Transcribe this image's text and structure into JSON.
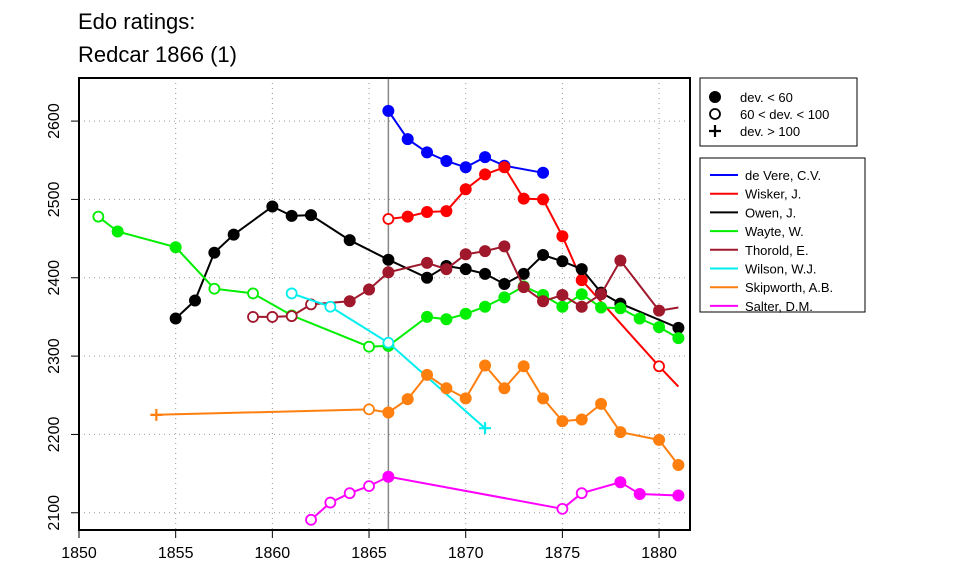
{
  "chart_data": {
    "type": "line",
    "title_lines": [
      "Edo ratings:",
      "Redcar 1866 (1)"
    ],
    "xlim": [
      1850,
      1881.6
    ],
    "ylim": [
      2078,
      2655
    ],
    "x_ticks": [
      1850,
      1855,
      1860,
      1865,
      1870,
      1875,
      1880
    ],
    "y_ticks": [
      2100,
      2200,
      2300,
      2400,
      2500,
      2600
    ],
    "grid": true,
    "reference_line_x": 1866,
    "marker_legend": [
      {
        "marker": "filled",
        "label": "dev. < 60"
      },
      {
        "marker": "open",
        "label": "60 < dev. < 100"
      },
      {
        "marker": "plus",
        "label": "dev. > 100"
      }
    ],
    "series": [
      {
        "name": "de Vere, C.V.",
        "color": "#0000ff",
        "points": [
          {
            "x": 1866,
            "y": 2613,
            "m": "f"
          },
          {
            "x": 1867,
            "y": 2577,
            "m": "f"
          },
          {
            "x": 1868,
            "y": 2560,
            "m": "f"
          },
          {
            "x": 1869,
            "y": 2549,
            "m": "f"
          },
          {
            "x": 1870,
            "y": 2541,
            "m": "f"
          },
          {
            "x": 1871,
            "y": 2554,
            "m": "f"
          },
          {
            "x": 1872,
            "y": 2543,
            "m": "f"
          },
          {
            "x": 1874,
            "y": 2534,
            "m": "f"
          }
        ]
      },
      {
        "name": "Wisker, J.",
        "color": "#ff0000",
        "points": [
          {
            "x": 1866,
            "y": 2475,
            "m": "o"
          },
          {
            "x": 1867,
            "y": 2478,
            "m": "f"
          },
          {
            "x": 1868,
            "y": 2484,
            "m": "f"
          },
          {
            "x": 1869,
            "y": 2485,
            "m": "f"
          },
          {
            "x": 1870,
            "y": 2513,
            "m": "f"
          },
          {
            "x": 1871,
            "y": 2532,
            "m": "f"
          },
          {
            "x": 1872,
            "y": 2541,
            "m": "f"
          },
          {
            "x": 1873,
            "y": 2501,
            "m": "f"
          },
          {
            "x": 1874,
            "y": 2500,
            "m": "f"
          },
          {
            "x": 1875,
            "y": 2453,
            "m": "f"
          },
          {
            "x": 1876,
            "y": 2397,
            "m": "f"
          },
          {
            "x": 1880,
            "y": 2287,
            "m": "o"
          },
          {
            "x": 1881,
            "y": 2261,
            "m": "n"
          }
        ]
      },
      {
        "name": "Owen, J.",
        "color": "#000000",
        "points": [
          {
            "x": 1855,
            "y": 2348,
            "m": "f"
          },
          {
            "x": 1856,
            "y": 2371,
            "m": "f"
          },
          {
            "x": 1857,
            "y": 2432,
            "m": "f"
          },
          {
            "x": 1858,
            "y": 2455,
            "m": "f"
          },
          {
            "x": 1860,
            "y": 2491,
            "m": "f"
          },
          {
            "x": 1861,
            "y": 2479,
            "m": "f"
          },
          {
            "x": 1862,
            "y": 2480,
            "m": "f"
          },
          {
            "x": 1864,
            "y": 2448,
            "m": "f"
          },
          {
            "x": 1866,
            "y": 2423,
            "m": "f"
          },
          {
            "x": 1868,
            "y": 2400,
            "m": "f"
          },
          {
            "x": 1869,
            "y": 2415,
            "m": "f"
          },
          {
            "x": 1870,
            "y": 2411,
            "m": "f"
          },
          {
            "x": 1871,
            "y": 2405,
            "m": "f"
          },
          {
            "x": 1872,
            "y": 2392,
            "m": "f"
          },
          {
            "x": 1873,
            "y": 2405,
            "m": "f"
          },
          {
            "x": 1874,
            "y": 2429,
            "m": "f"
          },
          {
            "x": 1875,
            "y": 2421,
            "m": "f"
          },
          {
            "x": 1876,
            "y": 2411,
            "m": "f"
          },
          {
            "x": 1877,
            "y": 2381,
            "m": "f"
          },
          {
            "x": 1878,
            "y": 2367,
            "m": "f"
          },
          {
            "x": 1881,
            "y": 2336,
            "m": "f"
          }
        ]
      },
      {
        "name": "Wayte, W.",
        "color": "#00ee00",
        "points": [
          {
            "x": 1851,
            "y": 2478,
            "m": "o"
          },
          {
            "x": 1852,
            "y": 2459,
            "m": "f"
          },
          {
            "x": 1855,
            "y": 2439,
            "m": "f"
          },
          {
            "x": 1857,
            "y": 2386,
            "m": "o"
          },
          {
            "x": 1859,
            "y": 2380,
            "m": "o"
          },
          {
            "x": 1861,
            "y": 2352,
            "m": "o"
          },
          {
            "x": 1865,
            "y": 2312,
            "m": "o"
          },
          {
            "x": 1866,
            "y": 2313,
            "m": "f"
          },
          {
            "x": 1868,
            "y": 2350,
            "m": "f"
          },
          {
            "x": 1869,
            "y": 2347,
            "m": "f"
          },
          {
            "x": 1870,
            "y": 2354,
            "m": "f"
          },
          {
            "x": 1871,
            "y": 2363,
            "m": "f"
          },
          {
            "x": 1872,
            "y": 2375,
            "m": "f"
          },
          {
            "x": 1873,
            "y": 2389,
            "m": "f"
          },
          {
            "x": 1874,
            "y": 2378,
            "m": "f"
          },
          {
            "x": 1875,
            "y": 2363,
            "m": "f"
          },
          {
            "x": 1876,
            "y": 2379,
            "m": "f"
          },
          {
            "x": 1877,
            "y": 2362,
            "m": "f"
          },
          {
            "x": 1878,
            "y": 2361,
            "m": "f"
          },
          {
            "x": 1879,
            "y": 2348,
            "m": "f"
          },
          {
            "x": 1880,
            "y": 2337,
            "m": "f"
          },
          {
            "x": 1881,
            "y": 2323,
            "m": "f"
          }
        ]
      },
      {
        "name": "Thorold, E.",
        "color": "#a0182c",
        "points": [
          {
            "x": 1859,
            "y": 2350,
            "m": "o"
          },
          {
            "x": 1860,
            "y": 2350,
            "m": "o"
          },
          {
            "x": 1861,
            "y": 2351,
            "m": "o"
          },
          {
            "x": 1862,
            "y": 2366,
            "m": "o"
          },
          {
            "x": 1864,
            "y": 2370,
            "m": "f"
          },
          {
            "x": 1865,
            "y": 2385,
            "m": "f"
          },
          {
            "x": 1866,
            "y": 2407,
            "m": "f"
          },
          {
            "x": 1868,
            "y": 2419,
            "m": "f"
          },
          {
            "x": 1869,
            "y": 2411,
            "m": "f"
          },
          {
            "x": 1870,
            "y": 2430,
            "m": "f"
          },
          {
            "x": 1871,
            "y": 2434,
            "m": "f"
          },
          {
            "x": 1872,
            "y": 2440,
            "m": "f"
          },
          {
            "x": 1873,
            "y": 2388,
            "m": "f"
          },
          {
            "x": 1874,
            "y": 2370,
            "m": "f"
          },
          {
            "x": 1875,
            "y": 2378,
            "m": "f"
          },
          {
            "x": 1876,
            "y": 2363,
            "m": "f"
          },
          {
            "x": 1877,
            "y": 2379,
            "m": "f"
          },
          {
            "x": 1878,
            "y": 2422,
            "m": "f"
          },
          {
            "x": 1880,
            "y": 2358,
            "m": "f"
          },
          {
            "x": 1881,
            "y": 2362,
            "m": "n"
          }
        ]
      },
      {
        "name": "Wilson, W.J.",
        "color": "#00eeee",
        "points": [
          {
            "x": 1861,
            "y": 2380,
            "m": "o"
          },
          {
            "x": 1863,
            "y": 2363,
            "m": "o"
          },
          {
            "x": 1866,
            "y": 2317,
            "m": "o"
          },
          {
            "x": 1871,
            "y": 2208,
            "m": "p"
          }
        ]
      },
      {
        "name": "Skipworth, A.B.",
        "color": "#ff7f0e",
        "points": [
          {
            "x": 1854,
            "y": 2225,
            "m": "p"
          },
          {
            "x": 1865,
            "y": 2232,
            "m": "o"
          },
          {
            "x": 1866,
            "y": 2228,
            "m": "f"
          },
          {
            "x": 1867,
            "y": 2245,
            "m": "f"
          },
          {
            "x": 1868,
            "y": 2276,
            "m": "f"
          },
          {
            "x": 1869,
            "y": 2259,
            "m": "f"
          },
          {
            "x": 1870,
            "y": 2246,
            "m": "f"
          },
          {
            "x": 1871,
            "y": 2288,
            "m": "f"
          },
          {
            "x": 1872,
            "y": 2259,
            "m": "f"
          },
          {
            "x": 1873,
            "y": 2287,
            "m": "f"
          },
          {
            "x": 1874,
            "y": 2246,
            "m": "f"
          },
          {
            "x": 1875,
            "y": 2217,
            "m": "f"
          },
          {
            "x": 1876,
            "y": 2219,
            "m": "f"
          },
          {
            "x": 1877,
            "y": 2239,
            "m": "f"
          },
          {
            "x": 1878,
            "y": 2203,
            "m": "f"
          },
          {
            "x": 1880,
            "y": 2193,
            "m": "f"
          },
          {
            "x": 1881,
            "y": 2161,
            "m": "f"
          }
        ]
      },
      {
        "name": "Salter, D.M.",
        "color": "#ff00ff",
        "points": [
          {
            "x": 1862,
            "y": 2091,
            "m": "o"
          },
          {
            "x": 1863,
            "y": 2113,
            "m": "o"
          },
          {
            "x": 1864,
            "y": 2125,
            "m": "o"
          },
          {
            "x": 1865,
            "y": 2134,
            "m": "o"
          },
          {
            "x": 1866,
            "y": 2146,
            "m": "f"
          },
          {
            "x": 1875,
            "y": 2105,
            "m": "o"
          },
          {
            "x": 1876,
            "y": 2125,
            "m": "o"
          },
          {
            "x": 1878,
            "y": 2139,
            "m": "f"
          },
          {
            "x": 1879,
            "y": 2124,
            "m": "f"
          },
          {
            "x": 1881,
            "y": 2122,
            "m": "f"
          }
        ]
      }
    ]
  }
}
